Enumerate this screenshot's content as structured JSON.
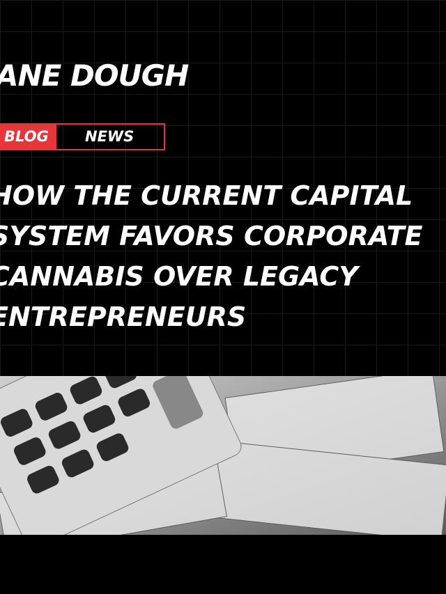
{
  "brand": "ANE DOUGH",
  "tabs": [
    "BLOG",
    "NEWS"
  ],
  "headline": [
    "HOW THE CURRENT CAPITAL",
    "SYSTEM FAVORS CORPORATE",
    "CANNABIS OVER LEGACY",
    "ENTREPRENEURS"
  ]
}
